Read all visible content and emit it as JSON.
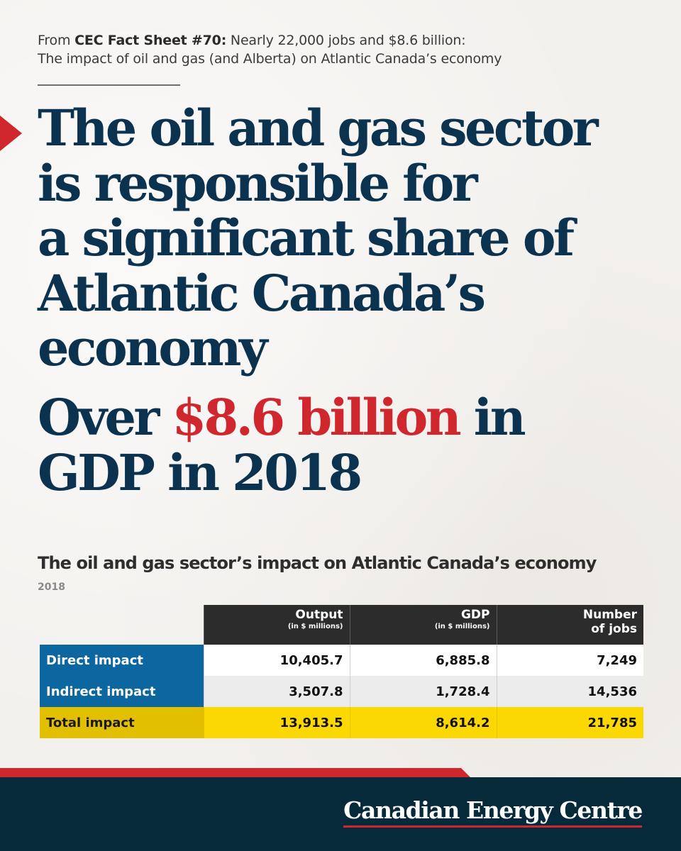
{
  "source": {
    "prefix": "From ",
    "sheet": "CEC Fact Sheet #70:",
    "line1_rest": " Nearly 22,000 jobs and $8.6 billion:",
    "line2": "The impact of oil and gas (and Alberta) on Atlantic Canada’s economy"
  },
  "headline": {
    "lines": [
      "The oil and gas sector",
      "is responsible for",
      "a significant share of",
      "Atlantic Canada’s",
      "economy"
    ]
  },
  "gdp_callout": {
    "pre": "Over ",
    "highlight": "$8.6 billion",
    "post": " in",
    "line2": "GDP in 2018"
  },
  "table": {
    "title": "The oil and gas sector’s impact on Atlantic Canada’s economy",
    "year": "2018",
    "columns": [
      {
        "label": "Output",
        "sub": "(in $ millions)"
      },
      {
        "label": "GDP",
        "sub": "(in $ millions)"
      },
      {
        "label": "Number",
        "label2": "of jobs"
      }
    ],
    "rows": [
      {
        "label": "Direct impact",
        "output": "10,405.7",
        "gdp": "6,885.8",
        "jobs": "7,249"
      },
      {
        "label": "Indirect impact",
        "output": "3,507.8",
        "gdp": "1,728.4",
        "jobs": "14,536"
      },
      {
        "label": "Total impact",
        "output": "13,913.5",
        "gdp": "8,614.2",
        "jobs": "21,785"
      }
    ]
  },
  "colors": {
    "navy": "#0b3350",
    "red": "#d0262e",
    "blue": "#0c67a0",
    "yellow": "#fcd802",
    "footer": "#062a3a"
  },
  "footer": {
    "brand": "Canadian Energy Centre"
  }
}
